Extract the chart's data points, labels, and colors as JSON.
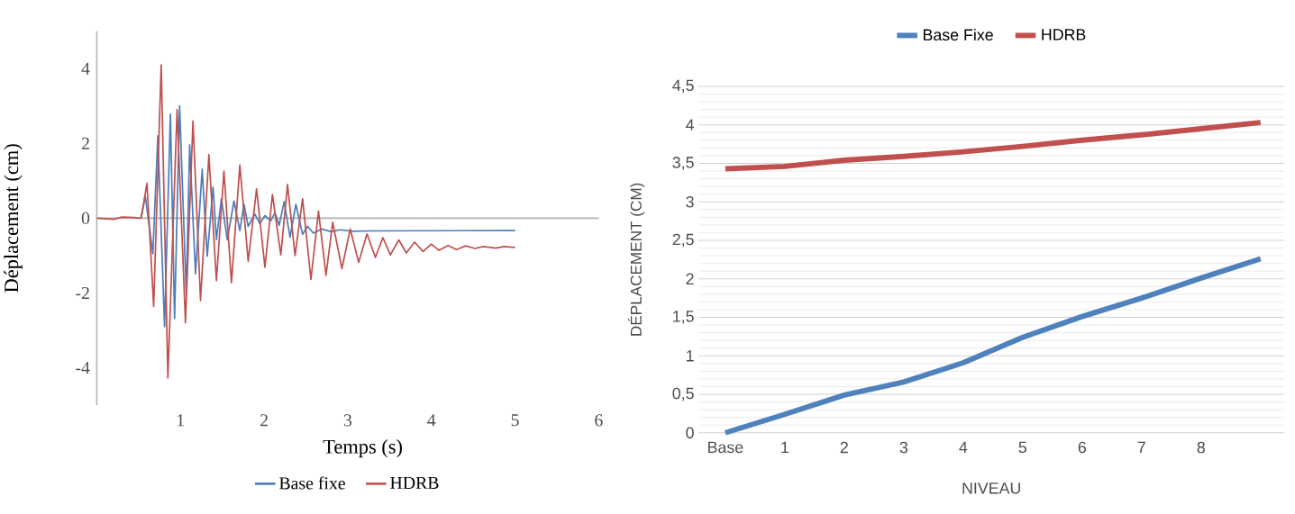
{
  "chart_data": [
    {
      "type": "line",
      "xlabel": "Temps (s)",
      "ylabel": "Déplacement (cm)",
      "xlim": [
        0,
        6
      ],
      "xticks": [
        1,
        2,
        3,
        4,
        5,
        6
      ],
      "ylim": [
        -5,
        5
      ],
      "yticks": [
        -4,
        -2,
        0,
        2,
        4
      ],
      "legend": "bottom",
      "series": [
        {
          "name": "Base fixe",
          "color": "#4a7ebb",
          "x": [
            0.53,
            0.58,
            0.67,
            0.73,
            0.81,
            0.88,
            0.93,
            0.99,
            1.07,
            1.11,
            1.18,
            1.26,
            1.32,
            1.39,
            1.43,
            1.49,
            1.56,
            1.64,
            1.71,
            1.76,
            1.81,
            1.89,
            1.95,
            2.01,
            2.08,
            2.13,
            2.18,
            2.24,
            2.31,
            2.38,
            2.46,
            2.52,
            2.59,
            2.69,
            2.8,
            2.91,
            3.05,
            3.33,
            5.0
          ],
          "values": [
            0,
            0.59,
            -0.95,
            2.2,
            -2.9,
            2.78,
            -2.68,
            3.0,
            -2.04,
            1.96,
            -1.49,
            1.31,
            -1.02,
            0.83,
            -0.57,
            0.52,
            -0.58,
            0.46,
            -0.33,
            0.37,
            -0.22,
            0.11,
            -0.15,
            0.07,
            -0.07,
            0.15,
            -0.19,
            0.44,
            -0.51,
            0.37,
            -0.43,
            -0.22,
            -0.4,
            -0.29,
            -0.36,
            -0.31,
            -0.35,
            -0.34,
            -0.33
          ]
        },
        {
          "name": "HDRB",
          "color": "#c0504d",
          "x": [
            0,
            0.2,
            0.3,
            0.45,
            0.53,
            0.6,
            0.68,
            0.77,
            0.85,
            0.96,
            1.06,
            1.15,
            1.24,
            1.34,
            1.43,
            1.52,
            1.61,
            1.71,
            1.81,
            1.91,
            2.01,
            2.1,
            2.2,
            2.28,
            2.37,
            2.46,
            2.56,
            2.65,
            2.74,
            2.82,
            2.93,
            3.03,
            3.13,
            3.23,
            3.33,
            3.42,
            3.51,
            3.61,
            3.7,
            3.8,
            3.9,
            4.0,
            4.09,
            4.2,
            4.3,
            4.41,
            4.52,
            4.62,
            4.77,
            4.87,
            5.0
          ],
          "values": [
            0,
            -0.03,
            0.03,
            0.02,
            0,
            0.93,
            -2.36,
            4.1,
            -4.27,
            2.9,
            -2.8,
            2.6,
            -2.2,
            1.7,
            -1.67,
            1.26,
            -1.73,
            1.42,
            -1.15,
            0.78,
            -1.31,
            0.63,
            -0.98,
            0.9,
            -1.0,
            0.52,
            -1.64,
            0.19,
            -1.53,
            -0.11,
            -1.35,
            -0.29,
            -1.18,
            -0.42,
            -1.05,
            -0.52,
            -0.98,
            -0.58,
            -0.93,
            -0.64,
            -0.89,
            -0.69,
            -0.86,
            -0.73,
            -0.84,
            -0.74,
            -0.81,
            -0.76,
            -0.8,
            -0.76,
            -0.78
          ]
        }
      ]
    },
    {
      "type": "line",
      "xlabel": "NIVEAU",
      "ylabel": "DÉPLACEMENT (CM)",
      "categories": [
        "Base",
        "1",
        "2",
        "3",
        "4",
        "5",
        "6",
        "7",
        "8",
        null
      ],
      "ylim": [
        0,
        4.5
      ],
      "yticks": [
        {
          "value": 0,
          "label": "0"
        },
        {
          "value": 0.5,
          "label": "0,5"
        },
        {
          "value": 1,
          "label": "1"
        },
        {
          "value": 1.5,
          "label": "1,5"
        },
        {
          "value": 2,
          "label": "2"
        },
        {
          "value": 2.5,
          "label": "2,5"
        },
        {
          "value": 3,
          "label": "3"
        },
        {
          "value": 3.5,
          "label": "3,5"
        },
        {
          "value": 4,
          "label": "4"
        },
        {
          "value": 4.5,
          "label": "4,5"
        }
      ],
      "grid": "y",
      "legend": "top",
      "series": [
        {
          "name": "Base Fixe",
          "color": "#4f81bd",
          "values": [
            0,
            0.24,
            0.49,
            0.66,
            0.91,
            1.24,
            1.51,
            1.75,
            2.01,
            2.26
          ]
        },
        {
          "name": "HDRB",
          "color": "#c0504d",
          "values": [
            3.43,
            3.46,
            3.54,
            3.59,
            3.65,
            3.72,
            3.8,
            3.87,
            3.95,
            4.03
          ]
        }
      ]
    }
  ]
}
